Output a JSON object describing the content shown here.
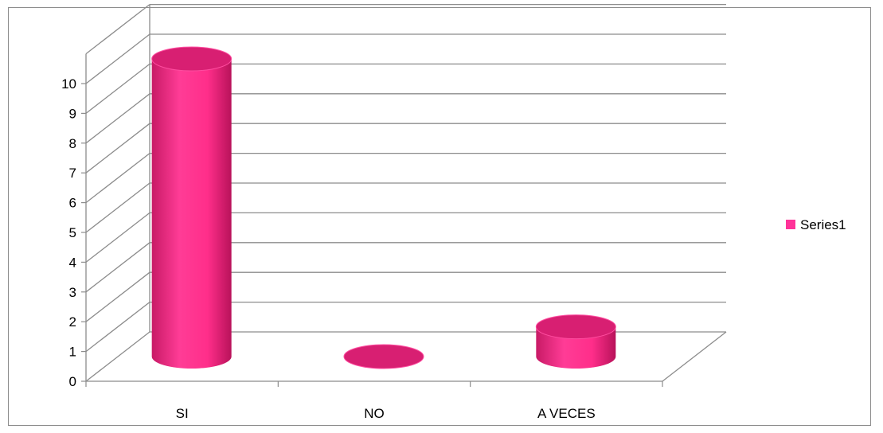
{
  "chart_data": {
    "type": "bar",
    "categories": [
      "SI",
      "NO",
      "A VECES"
    ],
    "series": [
      {
        "name": "Series1",
        "values": [
          10,
          0,
          1
        ],
        "color": "#ff3399"
      }
    ],
    "ylim": [
      0,
      10
    ],
    "yticks": [
      "0",
      "1",
      "2",
      "3",
      "4",
      "5",
      "6",
      "7",
      "8",
      "9",
      "10"
    ],
    "grid": true,
    "legend": "right",
    "style": "3d-cylinder"
  }
}
